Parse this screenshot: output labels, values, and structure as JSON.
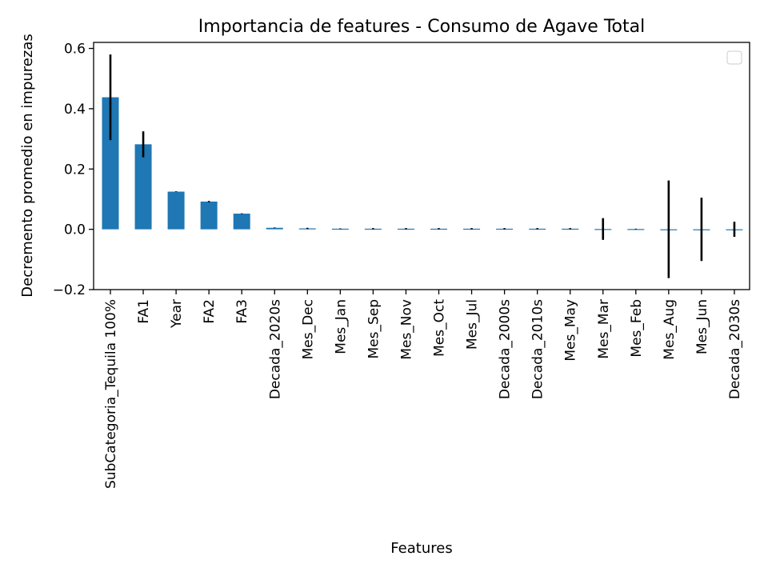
{
  "chart_data": {
    "type": "bar",
    "title": "Importancia de features - Consumo de Agave Total",
    "xlabel": "Features",
    "ylabel": "Decremento promedio en impurezas",
    "ylim": [
      -0.2,
      0.62
    ],
    "yticks": [
      -0.2,
      0.0,
      0.2,
      0.4,
      0.6
    ],
    "ytick_labels": [
      "−0.2",
      "0.0",
      "0.2",
      "0.4",
      "0.6"
    ],
    "categories": [
      "SubCategoria_Tequila 100%",
      "FA1",
      "Year",
      "FA2",
      "FA3",
      "Decada_2020s",
      "Mes_Dec",
      "Mes_Jan",
      "Mes_Sep",
      "Mes_Nov",
      "Mes_Oct",
      "Mes_Jul",
      "Decada_2000s",
      "Decada_2010s",
      "Mes_May",
      "Mes_Mar",
      "Mes_Feb",
      "Mes_Aug",
      "Mes_Jun",
      "Decada_2030s"
    ],
    "values": [
      0.438,
      0.282,
      0.125,
      0.092,
      0.052,
      0.005,
      0.003,
      0.002,
      0.002,
      0.002,
      0.002,
      0.002,
      0.002,
      0.002,
      0.002,
      0.001,
      0.001,
      0.0,
      0.0,
      0.0
    ],
    "errors": [
      0.142,
      0.043,
      0.001,
      0.002,
      0.001,
      0.001,
      0.002,
      0.001,
      0.002,
      0.002,
      0.002,
      0.002,
      0.002,
      0.002,
      0.002,
      0.036,
      0.001,
      0.162,
      0.105,
      0.025
    ],
    "bar_color": "#1f77b4",
    "error_color": "#000000",
    "grid": false,
    "legend": {
      "placement": "top-right",
      "entries": []
    }
  }
}
